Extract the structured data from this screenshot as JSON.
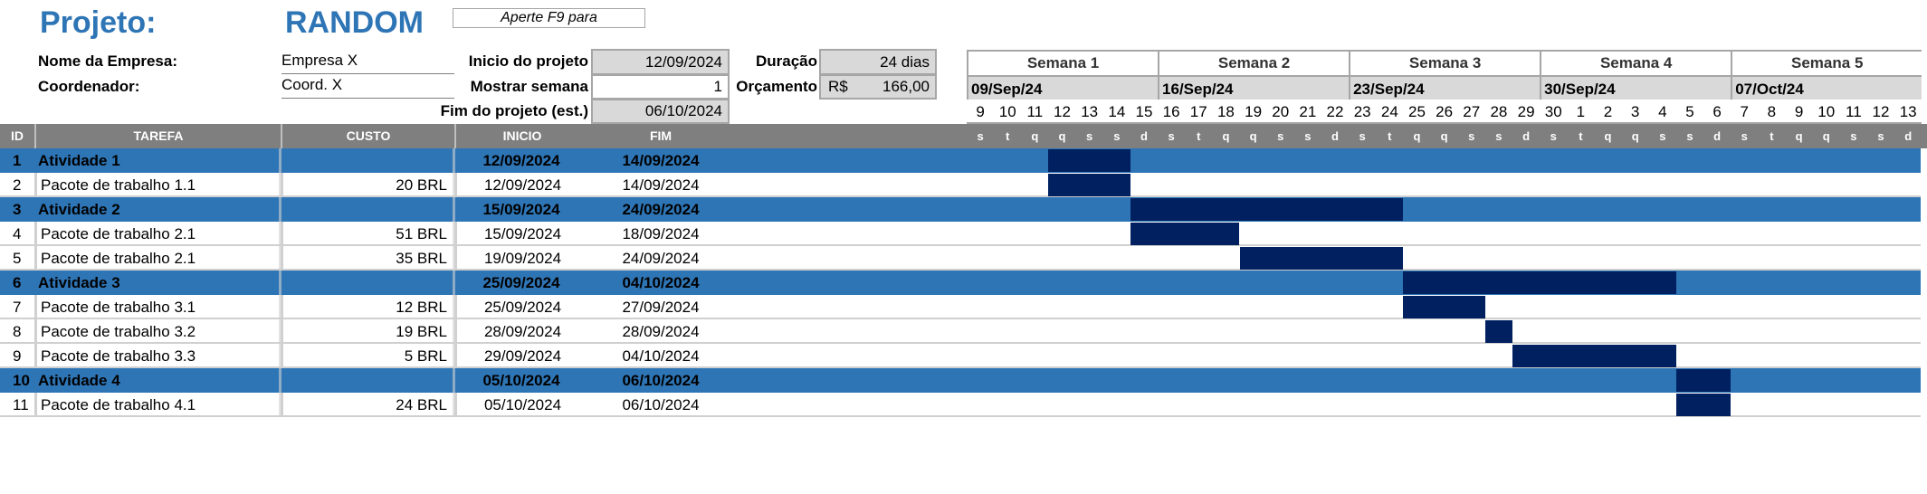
{
  "header": {
    "projeto_label": "Projeto:",
    "project_name": "RANDOM",
    "f9_note": "Aperte F9 para",
    "empresa_label": "Nome da Empresa:",
    "empresa_value": "Empresa X",
    "coordenador_label": "Coordenador:",
    "coordenador_value": "Coord. X",
    "inicio_label": "Inicio do projeto",
    "inicio_value": "12/09/2024",
    "mostrar_label": "Mostrar semana",
    "mostrar_value": "1",
    "fim_label": "Fim do projeto (est.)",
    "fim_value": "06/10/2024",
    "duracao_label": "Duração",
    "duracao_value": "24 dias",
    "orcamento_label": "Orçamento",
    "orcamento_currency": "R$",
    "orcamento_value": "166,00"
  },
  "weeks": [
    {
      "label": "Semana 1",
      "date": "09/Sep/24"
    },
    {
      "label": "Semana 2",
      "date": "16/Sep/24"
    },
    {
      "label": "Semana 3",
      "date": "23/Sep/24"
    },
    {
      "label": "Semana 4",
      "date": "30/Sep/24"
    },
    {
      "label": "Semana 5",
      "date": "07/Oct/24"
    }
  ],
  "days": [
    "9",
    "10",
    "11",
    "12",
    "13",
    "14",
    "15",
    "16",
    "17",
    "18",
    "19",
    "20",
    "21",
    "22",
    "23",
    "24",
    "25",
    "26",
    "27",
    "28",
    "29",
    "30",
    "1",
    "2",
    "3",
    "4",
    "5",
    "6",
    "7",
    "8",
    "9",
    "10",
    "11",
    "12",
    "13"
  ],
  "weekdays": [
    "s",
    "t",
    "q",
    "q",
    "s",
    "s",
    "d",
    "s",
    "t",
    "q",
    "q",
    "s",
    "s",
    "d",
    "s",
    "t",
    "q",
    "q",
    "s",
    "s",
    "d",
    "s",
    "t",
    "q",
    "q",
    "s",
    "s",
    "d",
    "s",
    "t",
    "q",
    "q",
    "s",
    "s",
    "d"
  ],
  "columns": {
    "id": "ID",
    "tarefa": "TAREFA",
    "custo": "CUSTO",
    "inicio": "INICIO",
    "fim": "FIM"
  },
  "tasks": [
    {
      "id": "1",
      "name": "Atividade 1",
      "cost": "",
      "start": "12/09/2024",
      "end": "14/09/2024",
      "summary": true,
      "bar_start_day": 3,
      "bar_days": 3
    },
    {
      "id": "2",
      "name": "Pacote de trabalho 1.1",
      "cost": "20 BRL",
      "start": "12/09/2024",
      "end": "14/09/2024",
      "summary": false,
      "bar_start_day": 3,
      "bar_days": 3
    },
    {
      "id": "3",
      "name": "Atividade 2",
      "cost": "",
      "start": "15/09/2024",
      "end": "24/09/2024",
      "summary": true,
      "bar_start_day": 6,
      "bar_days": 10
    },
    {
      "id": "4",
      "name": "Pacote de trabalho 2.1",
      "cost": "51 BRL",
      "start": "15/09/2024",
      "end": "18/09/2024",
      "summary": false,
      "bar_start_day": 6,
      "bar_days": 4
    },
    {
      "id": "5",
      "name": "Pacote de trabalho 2.1",
      "cost": "35 BRL",
      "start": "19/09/2024",
      "end": "24/09/2024",
      "summary": false,
      "bar_start_day": 10,
      "bar_days": 6
    },
    {
      "id": "6",
      "name": "Atividade 3",
      "cost": "",
      "start": "25/09/2024",
      "end": "04/10/2024",
      "summary": true,
      "bar_start_day": 16,
      "bar_days": 10
    },
    {
      "id": "7",
      "name": "Pacote de trabalho 3.1",
      "cost": "12 BRL",
      "start": "25/09/2024",
      "end": "27/09/2024",
      "summary": false,
      "bar_start_day": 16,
      "bar_days": 3
    },
    {
      "id": "8",
      "name": "Pacote de trabalho 3.2",
      "cost": "19 BRL",
      "start": "28/09/2024",
      "end": "28/09/2024",
      "summary": false,
      "bar_start_day": 19,
      "bar_days": 1
    },
    {
      "id": "9",
      "name": "Pacote de trabalho 3.3",
      "cost": "5 BRL",
      "start": "29/09/2024",
      "end": "04/10/2024",
      "summary": false,
      "bar_start_day": 20,
      "bar_days": 6
    },
    {
      "id": "10",
      "name": "Atividade 4",
      "cost": "",
      "start": "05/10/2024",
      "end": "06/10/2024",
      "summary": true,
      "bar_start_day": 26,
      "bar_days": 2
    },
    {
      "id": "11",
      "name": "Pacote de trabalho 4.1",
      "cost": "24 BRL",
      "start": "05/10/2024",
      "end": "06/10/2024",
      "summary": false,
      "bar_start_day": 26,
      "bar_days": 2
    }
  ],
  "colors": {
    "accent": "#2E75B6",
    "bar": "#002060",
    "header": "#7f7f7f"
  }
}
